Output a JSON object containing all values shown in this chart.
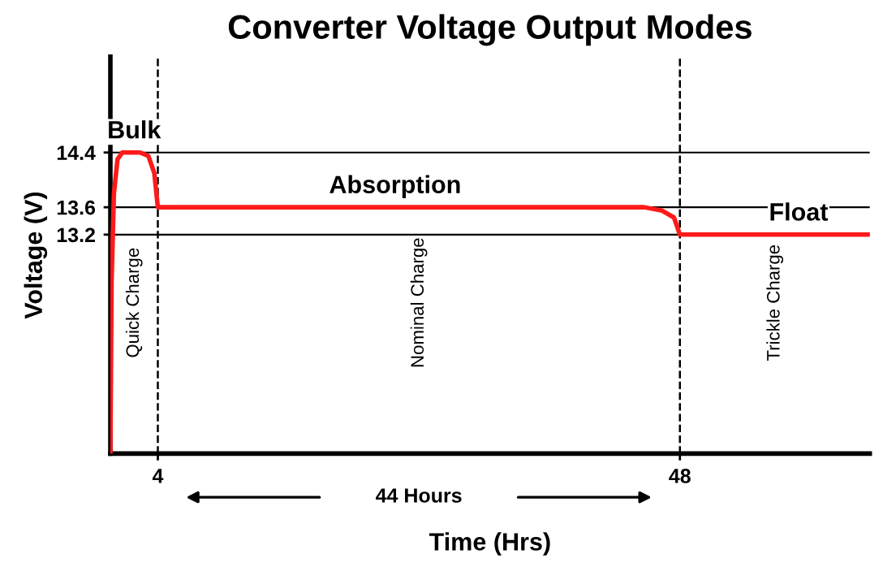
{
  "chart_data": {
    "type": "line",
    "title": "Converter Voltage Output Modes",
    "xlabel": "Time (Hrs)",
    "ylabel": "Voltage (V)",
    "series": [
      {
        "color": "#ff1a1a",
        "x": [
          0,
          0.1,
          0.3,
          0.6,
          1,
          2.5,
          3.2,
          3.7,
          4,
          45,
          46.5,
          47.5,
          48,
          64
        ],
        "values": [
          10,
          12.5,
          13.8,
          14.3,
          14.4,
          14.4,
          14.35,
          14.1,
          13.6,
          13.6,
          13.55,
          13.45,
          13.2,
          13.2
        ]
      }
    ],
    "xlim": [
      0,
      64
    ],
    "ylim": [
      10,
      15.8
    ],
    "xticks": [
      4,
      48
    ],
    "yticks": [
      14.4,
      13.6,
      13.2
    ],
    "grid": "y",
    "legend": false,
    "marker": "none",
    "line_style": "solid",
    "ref_lines": [
      {
        "axis": "x",
        "value": 4,
        "line_style": "dashed",
        "color": "#000000"
      },
      {
        "axis": "x",
        "value": 48,
        "line_style": "dashed",
        "color": "#000000"
      }
    ],
    "annotations": [
      {
        "text": "Bulk",
        "x": 2,
        "y": 14.4
      },
      {
        "text": "Absorption",
        "x": 24,
        "y": 13.6
      },
      {
        "text": "Float",
        "x": 58,
        "y": 13.2
      },
      "Quick Charge",
      "Nominal Charge",
      "Trickle Charge",
      "44 Hours"
    ]
  }
}
